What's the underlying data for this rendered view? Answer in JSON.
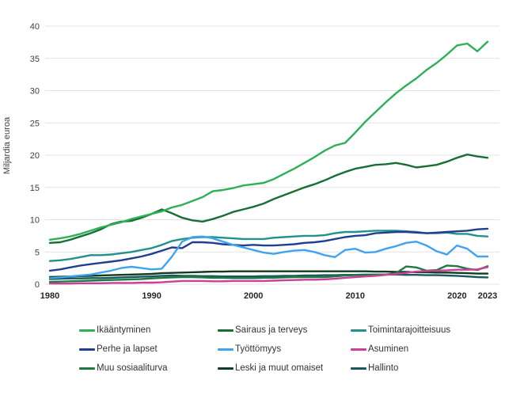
{
  "chart_data": {
    "type": "line",
    "title": "",
    "xlabel": "",
    "ylabel": "Miljardia euroa",
    "ylim": [
      0,
      40
    ],
    "grid": true,
    "legend_position": "bottom",
    "x_range": [
      1980,
      2023
    ],
    "x": [
      1980,
      1981,
      1982,
      1983,
      1984,
      1985,
      1986,
      1987,
      1988,
      1989,
      1990,
      1991,
      1992,
      1993,
      1994,
      1995,
      1996,
      1997,
      1998,
      1999,
      2000,
      2001,
      2002,
      2003,
      2004,
      2005,
      2006,
      2007,
      2008,
      2009,
      2010,
      2011,
      2012,
      2013,
      2014,
      2015,
      2016,
      2017,
      2018,
      2019,
      2020,
      2021,
      2022,
      2023
    ],
    "xticks": [
      1980,
      1990,
      2000,
      2010,
      2020,
      2023
    ],
    "yticks": [
      0,
      5,
      10,
      15,
      20,
      25,
      30,
      35,
      40
    ],
    "series": [
      {
        "name": "Ikääntyminen",
        "color": "#2eb055",
        "values": [
          6.9,
          7.1,
          7.4,
          7.8,
          8.3,
          8.8,
          9.2,
          9.6,
          10.1,
          10.5,
          10.9,
          11.3,
          11.9,
          12.3,
          12.9,
          13.5,
          14.4,
          14.6,
          14.9,
          15.3,
          15.5,
          15.7,
          16.3,
          17.1,
          17.9,
          18.8,
          19.7,
          20.7,
          21.5,
          21.9,
          23.5,
          25.2,
          26.7,
          28.2,
          29.6,
          30.8,
          31.9,
          33.2,
          34.3,
          35.6,
          37.0,
          37.3,
          36.1,
          37.6
        ]
      },
      {
        "name": "Sairaus ja terveys",
        "color": "#186f33",
        "values": [
          6.4,
          6.5,
          6.9,
          7.4,
          7.9,
          8.5,
          9.3,
          9.7,
          9.8,
          10.3,
          10.9,
          11.6,
          11.0,
          10.3,
          9.9,
          9.7,
          10.1,
          10.6,
          11.2,
          11.6,
          12.0,
          12.5,
          13.2,
          13.8,
          14.4,
          15.0,
          15.5,
          16.1,
          16.8,
          17.4,
          17.9,
          18.2,
          18.5,
          18.6,
          18.8,
          18.5,
          18.1,
          18.3,
          18.5,
          19.0,
          19.6,
          20.1,
          19.8,
          19.6
        ]
      },
      {
        "name": "Toimintarajoitteisuus",
        "color": "#23928c",
        "values": [
          3.6,
          3.7,
          3.9,
          4.2,
          4.5,
          4.5,
          4.6,
          4.8,
          5.0,
          5.3,
          5.6,
          6.1,
          6.7,
          7.0,
          7.2,
          7.3,
          7.3,
          7.2,
          7.1,
          7.0,
          7.0,
          7.0,
          7.2,
          7.3,
          7.4,
          7.5,
          7.5,
          7.6,
          7.9,
          8.1,
          8.1,
          8.2,
          8.3,
          8.3,
          8.3,
          8.2,
          8.1,
          7.9,
          7.9,
          8.0,
          7.8,
          7.8,
          7.5,
          7.4
        ]
      },
      {
        "name": "Perhe ja lapset",
        "color": "#213e90",
        "values": [
          2.1,
          2.3,
          2.6,
          2.9,
          3.1,
          3.3,
          3.5,
          3.7,
          4.0,
          4.3,
          4.7,
          5.2,
          5.7,
          5.6,
          6.5,
          6.5,
          6.4,
          6.2,
          6.1,
          6.0,
          6.1,
          6.0,
          6.0,
          6.1,
          6.2,
          6.4,
          6.5,
          6.7,
          7.0,
          7.3,
          7.5,
          7.6,
          7.9,
          8.0,
          8.1,
          8.1,
          8.0,
          7.9,
          8.0,
          8.1,
          8.2,
          8.3,
          8.5,
          8.6
        ]
      },
      {
        "name": "Työttömyys",
        "color": "#3fa3f0",
        "values": [
          0.95,
          1.05,
          1.2,
          1.35,
          1.5,
          1.8,
          2.1,
          2.5,
          2.7,
          2.5,
          2.3,
          2.4,
          4.3,
          6.6,
          7.3,
          7.4,
          7.1,
          6.6,
          6.1,
          5.7,
          5.3,
          4.9,
          4.7,
          5.0,
          5.2,
          5.3,
          5.0,
          4.5,
          4.2,
          5.3,
          5.5,
          4.9,
          5.0,
          5.5,
          5.9,
          6.4,
          6.6,
          6.0,
          5.1,
          4.6,
          6.0,
          5.5,
          4.3,
          4.3
        ]
      },
      {
        "name": "Asuminen",
        "color": "#cc3f98",
        "values": [
          0.1,
          0.1,
          0.1,
          0.15,
          0.15,
          0.15,
          0.2,
          0.2,
          0.2,
          0.25,
          0.25,
          0.3,
          0.4,
          0.5,
          0.5,
          0.5,
          0.45,
          0.45,
          0.5,
          0.5,
          0.5,
          0.5,
          0.55,
          0.6,
          0.65,
          0.7,
          0.7,
          0.75,
          0.85,
          1.0,
          1.1,
          1.2,
          1.3,
          1.45,
          1.6,
          1.75,
          1.95,
          2.05,
          2.1,
          2.15,
          2.25,
          2.25,
          2.3,
          2.65
        ]
      },
      {
        "name": "Muu sosiaaliturva",
        "color": "#1e7a40",
        "values": [
          0.35,
          0.4,
          0.45,
          0.5,
          0.55,
          0.6,
          0.65,
          0.7,
          0.75,
          0.8,
          0.9,
          1.0,
          1.05,
          1.1,
          1.1,
          1.05,
          1.0,
          1.0,
          0.95,
          0.95,
          0.95,
          1.0,
          1.0,
          1.05,
          1.1,
          1.1,
          1.1,
          1.1,
          1.2,
          1.35,
          1.4,
          1.4,
          1.45,
          1.5,
          1.7,
          2.75,
          2.6,
          2.1,
          2.2,
          2.9,
          2.8,
          2.4,
          2.2,
          2.8
        ]
      },
      {
        "name": "Leski ja muut omaiset",
        "color": "#133a23",
        "values": [
          1.1,
          1.15,
          1.2,
          1.25,
          1.3,
          1.35,
          1.4,
          1.45,
          1.5,
          1.55,
          1.6,
          1.7,
          1.75,
          1.8,
          1.85,
          1.9,
          1.95,
          1.95,
          2.0,
          2.0,
          2.0,
          2.0,
          2.0,
          2.0,
          2.0,
          2.0,
          2.0,
          2.0,
          2.0,
          2.0,
          2.0,
          2.0,
          1.95,
          1.95,
          1.9,
          1.9,
          1.85,
          1.85,
          1.8,
          1.8,
          1.75,
          1.7,
          1.65,
          1.65
        ]
      },
      {
        "name": "Hallinto",
        "color": "#175a5e",
        "values": [
          0.8,
          0.85,
          0.9,
          0.9,
          0.95,
          0.95,
          1.0,
          1.05,
          1.1,
          1.15,
          1.2,
          1.3,
          1.35,
          1.3,
          1.3,
          1.25,
          1.25,
          1.2,
          1.2,
          1.2,
          1.2,
          1.25,
          1.25,
          1.3,
          1.3,
          1.35,
          1.35,
          1.4,
          1.4,
          1.45,
          1.45,
          1.5,
          1.5,
          1.5,
          1.5,
          1.45,
          1.45,
          1.4,
          1.4,
          1.35,
          1.3,
          1.2,
          1.1,
          1.05
        ]
      }
    ]
  }
}
